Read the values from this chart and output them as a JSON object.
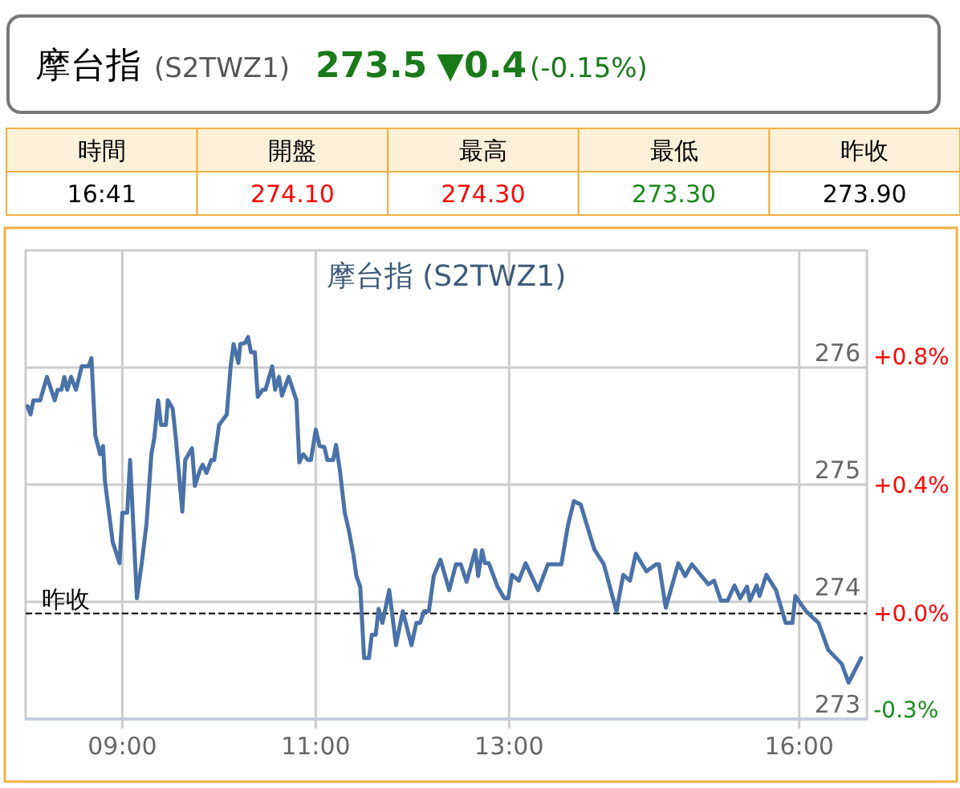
{
  "chart_data": {
    "type": "line",
    "title": "摩台指 (S2TWZ1)",
    "annotations": [
      "摩台指",
      "(S2TWZ1)",
      "273.5",
      "▼0.4",
      "(-0.15%)",
      "時間",
      "開盤",
      "最高",
      "最低",
      "昨收",
      "16:41",
      "274.10",
      "274.30",
      "273.30",
      "273.90"
    ],
    "xlim": [
      8,
      16.7
    ],
    "xticks": [
      {
        "value": 9,
        "label": "09:00"
      },
      {
        "value": 11,
        "label": "11:00"
      },
      {
        "value": 13,
        "label": "13:00"
      },
      {
        "value": 16,
        "label": "16:00"
      }
    ],
    "ylim": [
      273,
      277
    ],
    "yticks": [
      273,
      274,
      275,
      276
    ],
    "y2lim": [
      -0.33,
      1.13
    ],
    "y2ticks": [
      {
        "value": -0.3,
        "label": "-0.3%"
      },
      {
        "value": 0,
        "label": "+0.0%"
      },
      {
        "value": 0.4,
        "label": "+0.4%"
      },
      {
        "value": 0.8,
        "label": "+0.8%"
      }
    ],
    "grid": true,
    "ref_lines": [
      {
        "axis": "y",
        "value": 273.9,
        "label": "昨收",
        "line_style": "dashed",
        "color": "#000000"
      }
    ],
    "series": [
      {
        "color": "#4a72a8",
        "x": [
          8.02,
          8.05,
          8.08,
          8.15,
          8.22,
          8.3,
          8.33,
          8.37,
          8.4,
          8.43,
          8.47,
          8.52,
          8.58,
          8.65,
          8.68,
          8.72,
          8.77,
          8.8,
          8.82,
          8.9,
          8.97,
          9.0,
          9.05,
          9.08,
          9.15,
          9.2,
          9.25,
          9.3,
          9.33,
          9.37,
          9.4,
          9.45,
          9.47,
          9.52,
          9.55,
          9.62,
          9.65,
          9.72,
          9.75,
          9.8,
          9.83,
          9.87,
          9.92,
          9.95,
          10.0,
          10.08,
          10.12,
          10.15,
          10.2,
          10.22,
          10.27,
          10.3,
          10.33,
          10.37,
          10.4,
          10.45,
          10.48,
          10.55,
          10.58,
          10.62,
          10.65,
          10.72,
          10.8,
          10.83,
          10.87,
          10.92,
          10.95,
          11.0,
          11.04,
          11.09,
          11.12,
          11.18,
          11.21,
          11.25,
          11.3,
          11.34,
          11.39,
          11.42,
          11.46,
          11.5,
          11.55,
          11.58,
          11.62,
          11.65,
          11.69,
          11.76,
          11.83,
          11.9,
          11.99,
          12.04,
          12.08,
          12.12,
          12.17,
          12.22,
          12.29,
          12.38,
          12.45,
          12.5,
          12.56,
          12.65,
          12.68,
          12.72,
          12.75,
          12.79,
          12.88,
          12.95,
          12.99,
          13.03,
          13.1,
          13.17,
          13.3,
          13.4,
          13.54,
          13.61,
          13.67,
          13.74,
          13.88,
          13.98,
          14.11,
          14.18,
          14.25,
          14.31,
          14.42,
          14.52,
          14.55,
          14.62,
          14.75,
          14.82,
          14.89,
          15.06,
          15.12,
          15.19,
          15.26,
          15.33,
          15.39,
          15.46,
          15.49,
          15.56,
          15.59,
          15.66,
          15.76,
          15.86,
          15.93,
          15.96,
          16.07,
          16.2,
          16.3,
          16.44,
          16.51,
          16.64
        ],
        "values": [
          275.67,
          275.6,
          275.72,
          275.72,
          275.92,
          275.72,
          275.81,
          275.81,
          275.92,
          275.81,
          275.92,
          275.81,
          276.01,
          276.01,
          276.08,
          275.42,
          275.26,
          275.33,
          275.03,
          274.51,
          274.33,
          274.76,
          274.76,
          275.21,
          274.03,
          274.33,
          274.67,
          275.26,
          275.4,
          275.72,
          275.51,
          275.51,
          275.72,
          275.65,
          275.42,
          274.77,
          275.21,
          275.31,
          274.99,
          275.12,
          275.17,
          275.1,
          275.21,
          275.21,
          275.51,
          275.6,
          276.01,
          276.2,
          276.04,
          276.2,
          276.21,
          276.26,
          276.13,
          276.13,
          275.75,
          275.81,
          275.81,
          276.01,
          275.81,
          275.92,
          275.76,
          275.92,
          275.72,
          275.19,
          275.26,
          275.21,
          275.21,
          275.47,
          275.33,
          275.32,
          275.21,
          275.21,
          275.34,
          275.12,
          274.76,
          274.62,
          274.4,
          274.22,
          274.13,
          273.52,
          273.52,
          273.72,
          273.72,
          273.94,
          273.82,
          274.1,
          273.63,
          273.92,
          273.63,
          273.82,
          273.82,
          273.92,
          273.92,
          274.22,
          274.36,
          274.1,
          274.32,
          274.32,
          274.17,
          274.44,
          274.22,
          274.44,
          274.33,
          274.33,
          274.13,
          274.03,
          274.03,
          274.23,
          274.18,
          274.33,
          274.1,
          274.32,
          274.32,
          274.66,
          274.86,
          274.83,
          274.45,
          274.32,
          273.92,
          274.23,
          274.18,
          274.41,
          274.26,
          274.32,
          274.32,
          273.95,
          274.33,
          274.22,
          274.32,
          274.15,
          274.18,
          274.01,
          274.01,
          274.14,
          274.03,
          274.13,
          274.01,
          274.14,
          274.05,
          274.23,
          274.1,
          273.82,
          273.82,
          274.05,
          273.92,
          273.82,
          273.59,
          273.47,
          273.31,
          273.52
        ]
      }
    ]
  }
}
